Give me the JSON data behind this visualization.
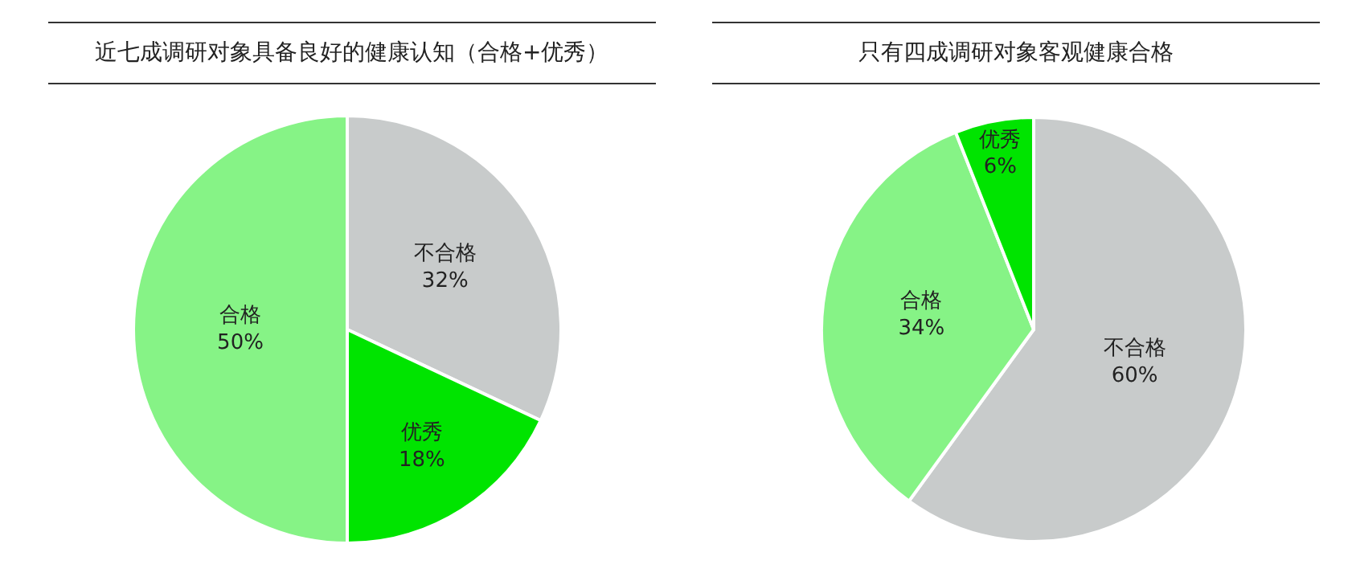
{
  "chart_data": [
    {
      "type": "pie",
      "title": "近七成调研对象具备良好的健康认知（合格+优秀）",
      "categories": [
        "不合格",
        "优秀",
        "合格"
      ],
      "values": [
        32,
        18,
        50
      ],
      "value_labels": [
        "32%",
        "18%",
        "50%"
      ],
      "colors": [
        "#c8cbcb",
        "#00e400",
        "#86f386"
      ],
      "legend": false
    },
    {
      "type": "pie",
      "title": "只有四成调研对象客观健康合格",
      "categories": [
        "不合格",
        "合格",
        "优秀"
      ],
      "values": [
        60,
        34,
        6
      ],
      "value_labels": [
        "60%",
        "34%",
        "6%"
      ],
      "colors": [
        "#c8cbcb",
        "#86f386",
        "#00e400"
      ],
      "legend": false
    }
  ]
}
